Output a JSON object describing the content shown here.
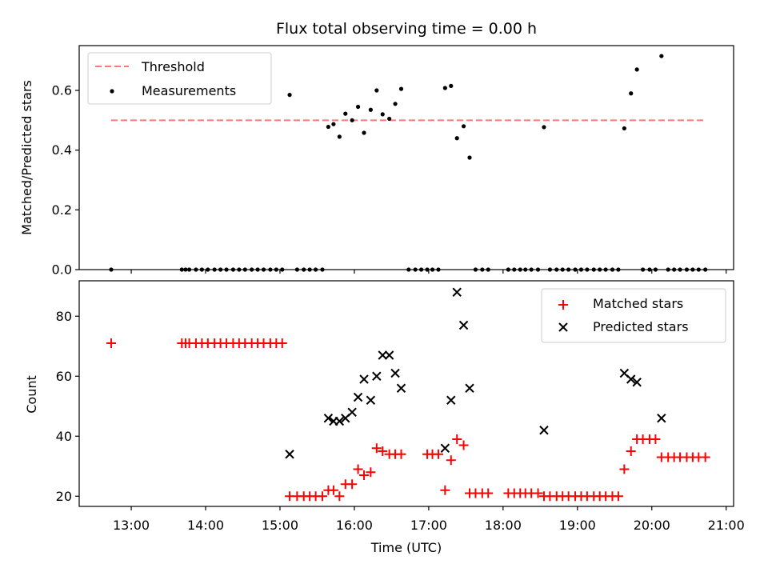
{
  "colors": {
    "threshold": "#ff7777",
    "measurement": "#000000",
    "matched": "#ff0000",
    "predicted": "#000000"
  },
  "chart_data": [
    {
      "type": "scatter",
      "title": "Flux total observing time = 0.00 h",
      "xlabel": "",
      "ylabel": "Matched/Predicted stars",
      "ylim": [
        0,
        0.75
      ],
      "yticks": [
        0.0,
        0.2,
        0.4,
        0.6
      ],
      "ytick_labels": [
        "0.0",
        "0.2",
        "0.4",
        "0.6"
      ],
      "xlim_hours": [
        12.3,
        21.1
      ],
      "legend_position": "upper left",
      "series": [
        {
          "name": "Threshold",
          "type": "line",
          "style": "dashed",
          "x_hours": [
            12.73,
            20.73
          ],
          "values": [
            0.5,
            0.5
          ]
        },
        {
          "name": "Measurements",
          "type": "scatter",
          "x_hours": [
            12.73,
            13.68,
            13.73,
            13.78,
            13.87,
            13.95,
            14.03,
            14.12,
            14.2,
            14.28,
            14.37,
            14.45,
            14.53,
            14.62,
            14.7,
            14.78,
            14.87,
            14.95,
            15.03,
            15.13,
            15.23,
            15.32,
            15.4,
            15.48,
            15.57,
            15.65,
            15.72,
            15.8,
            15.88,
            15.97,
            16.05,
            16.13,
            16.22,
            16.3,
            16.38,
            16.47,
            16.55,
            16.63,
            16.73,
            16.82,
            16.9,
            16.98,
            17.05,
            17.13,
            17.22,
            17.3,
            17.38,
            17.47,
            17.55,
            17.63,
            17.72,
            17.8,
            18.07,
            18.15,
            18.23,
            18.3,
            18.38,
            18.47,
            18.55,
            18.63,
            18.72,
            18.8,
            18.88,
            18.97,
            19.05,
            19.13,
            19.22,
            19.3,
            19.38,
            19.47,
            19.55,
            19.63,
            19.72,
            19.8,
            19.88,
            19.97,
            20.05,
            20.13,
            20.22,
            20.3,
            20.38,
            20.47,
            20.55,
            20.63,
            20.72
          ],
          "values": [
            0,
            0,
            0,
            0,
            0,
            0,
            0,
            0,
            0,
            0,
            0,
            0,
            0,
            0,
            0,
            0,
            0,
            0,
            0,
            0.585,
            0,
            0,
            0,
            0,
            0,
            0.478,
            0.487,
            0.445,
            0.522,
            0.5,
            0.545,
            0.458,
            0.535,
            0.6,
            0.52,
            0.505,
            0.555,
            0.605,
            0,
            0,
            0,
            0,
            0,
            0,
            0.608,
            0.615,
            0.44,
            0.48,
            0.375,
            0,
            0,
            0,
            0,
            0,
            0,
            0,
            0,
            0,
            0.477,
            0,
            0,
            0,
            0,
            0,
            0,
            0,
            0,
            0,
            0,
            0,
            0,
            0.473,
            0.59,
            0.67,
            0,
            0,
            0,
            0.715,
            0,
            0,
            0,
            0,
            0,
            0,
            0
          ]
        }
      ]
    },
    {
      "type": "scatter",
      "title": "",
      "xlabel": "Time (UTC)",
      "ylabel": "Count",
      "ylim": [
        16.6,
        91.8
      ],
      "yticks": [
        20,
        40,
        60,
        80
      ],
      "ytick_labels": [
        "20",
        "40",
        "60",
        "80"
      ],
      "xlim_hours": [
        12.3,
        21.1
      ],
      "xticks_hours": [
        13,
        14,
        15,
        16,
        17,
        18,
        19,
        20,
        21
      ],
      "xtick_labels": [
        "13:00",
        "14:00",
        "15:00",
        "16:00",
        "17:00",
        "18:00",
        "19:00",
        "20:00",
        "21:00"
      ],
      "legend_position": "upper right",
      "series": [
        {
          "name": "Matched stars",
          "marker": "+",
          "x_hours": [
            12.73,
            13.68,
            13.73,
            13.78,
            13.87,
            13.95,
            14.03,
            14.12,
            14.2,
            14.28,
            14.37,
            14.45,
            14.53,
            14.62,
            14.7,
            14.78,
            14.87,
            14.95,
            15.03,
            15.13,
            15.23,
            15.32,
            15.4,
            15.48,
            15.57,
            15.65,
            15.72,
            15.8,
            15.88,
            15.97,
            16.05,
            16.13,
            16.22,
            16.3,
            16.38,
            16.47,
            16.55,
            16.63,
            16.98,
            17.05,
            17.13,
            17.22,
            17.3,
            17.38,
            17.47,
            17.55,
            17.63,
            17.72,
            17.8,
            18.07,
            18.15,
            18.23,
            18.3,
            18.38,
            18.47,
            18.55,
            18.63,
            18.72,
            18.8,
            18.88,
            18.97,
            19.05,
            19.13,
            19.22,
            19.3,
            19.38,
            19.47,
            19.55,
            19.63,
            19.72,
            19.8,
            19.88,
            19.97,
            20.05,
            20.13,
            20.22,
            20.3,
            20.38,
            20.47,
            20.55,
            20.63,
            20.72
          ],
          "values": [
            71,
            71,
            71,
            71,
            71,
            71,
            71,
            71,
            71,
            71,
            71,
            71,
            71,
            71,
            71,
            71,
            71,
            71,
            71,
            20,
            20,
            20,
            20,
            20,
            20,
            22,
            22,
            20,
            24,
            24,
            29,
            27,
            28,
            36,
            35,
            34,
            34,
            34,
            34,
            34,
            34,
            22,
            32,
            39,
            37,
            21,
            21,
            21,
            21,
            21,
            21,
            21,
            21,
            21,
            21,
            20,
            20,
            20,
            20,
            20,
            20,
            20,
            20,
            20,
            20,
            20,
            20,
            20,
            29,
            35,
            39,
            39,
            39,
            39,
            33,
            33,
            33,
            33,
            33,
            33,
            33,
            33
          ]
        },
        {
          "name": "Predicted stars",
          "marker": "x",
          "x_hours": [
            15.13,
            15.65,
            15.72,
            15.8,
            15.88,
            15.97,
            16.05,
            16.13,
            16.22,
            16.3,
            16.38,
            16.47,
            16.55,
            16.63,
            17.22,
            17.3,
            17.38,
            17.47,
            17.55,
            18.55,
            19.63,
            19.72,
            19.8,
            20.13
          ],
          "values": [
            34,
            46,
            45,
            45,
            46,
            48,
            53,
            59,
            52,
            60,
            67,
            67,
            61,
            56,
            36,
            52,
            88,
            77,
            56,
            42,
            61,
            59,
            58,
            46
          ]
        }
      ]
    }
  ]
}
